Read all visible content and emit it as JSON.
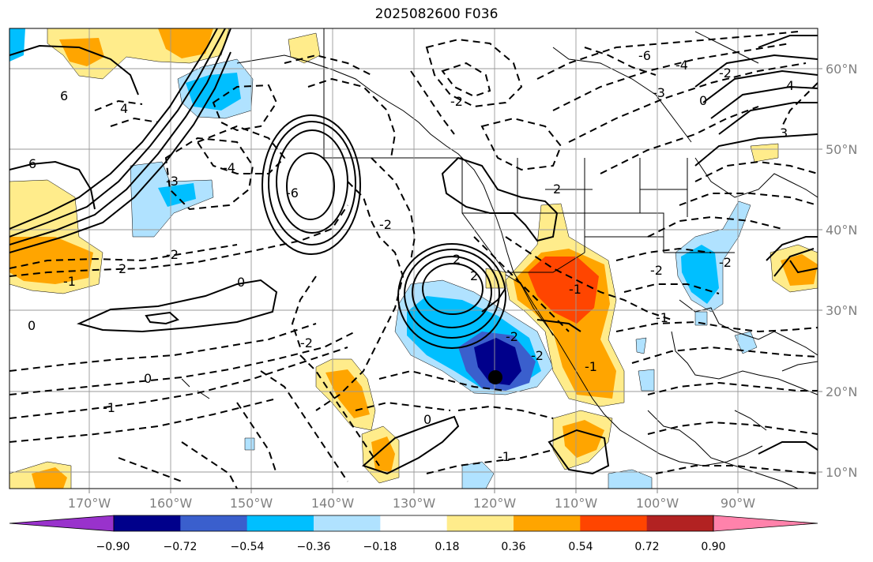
{
  "title": "2025082600 F036",
  "lon_labels": [
    "170°W",
    "160°W",
    "150°W",
    "140°W",
    "130°W",
    "120°W",
    "110°W",
    "100°W",
    "90°W"
  ],
  "lat_labels": [
    "60°N",
    "50°N",
    "40°N",
    "30°N",
    "20°N",
    "10°N"
  ],
  "colorbar": {
    "colors": [
      "#9932cc",
      "#00008b",
      "#3a5fcd",
      "#00bfff",
      "#b0e2ff",
      "#ffffff",
      "#ffec8b",
      "#ffa500",
      "#ff4500",
      "#b22222",
      "#ff82ab"
    ],
    "tick_labels": [
      "−0.90",
      "−0.72",
      "−0.54",
      "−0.36",
      "−0.18",
      "0.18",
      "0.36",
      "0.54",
      "0.72",
      "0.90"
    ]
  },
  "contour_labels": [
    "6",
    "6",
    "4",
    "2",
    "-1",
    "0",
    "0",
    "-1",
    "-2",
    "-6",
    "-3",
    "-4",
    "-2",
    "2",
    "-2",
    "0",
    "-1",
    "-1",
    "-2",
    "-4",
    "-6",
    "0",
    "4",
    "-3",
    "3",
    "-2",
    "2",
    "-2",
    "2",
    "-2",
    "-1",
    "-1",
    "-2",
    "-2",
    "0"
  ],
  "marker": "center-point"
}
